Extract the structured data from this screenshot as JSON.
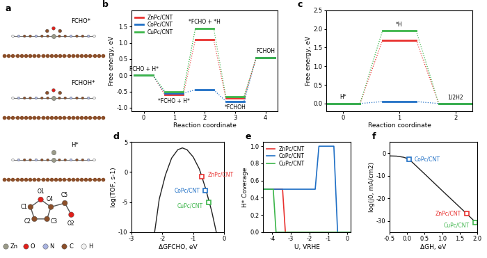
{
  "structure_panel": {
    "title": "a",
    "states": [
      "FCHO*",
      "FCHOH*",
      "H*"
    ],
    "atom_labels": [
      "O1",
      "C1",
      "C2",
      "C3",
      "C4",
      "C5",
      "O2"
    ],
    "legend": [
      {
        "name": "Zn",
        "color": "#9a9a88"
      },
      {
        "name": "O",
        "color": "#e0201b"
      },
      {
        "name": "N",
        "color": "#aab4e0"
      },
      {
        "name": "C",
        "color": "#8b4f2a"
      },
      {
        "name": "H",
        "color": "#f2f2f2"
      }
    ]
  },
  "chart_data": [
    {
      "type": "energy_diagram",
      "title": "b",
      "x_label": "Reaction coordinate",
      "y_label": "Free energy, eV",
      "x": [
        0,
        1,
        2,
        3,
        4
      ],
      "xlim": [
        -0.4,
        4.4
      ],
      "xticks": [
        0,
        1,
        2,
        3,
        4
      ],
      "ylim": [
        -1.1,
        2.0
      ],
      "yticks": [
        {
          "value": -1.0,
          "label": "-1.0"
        },
        {
          "value": -0.5,
          "label": "-0.5"
        },
        {
          "value": 0.0,
          "label": "0.0"
        },
        {
          "value": 0.5,
          "label": "0.5"
        },
        {
          "value": 1.0,
          "label": "1.0"
        },
        {
          "value": 1.5,
          "label": "1.5"
        }
      ],
      "line_style": "dotted",
      "legend": "upper left",
      "series": [
        {
          "name": "ZnPc/CNT",
          "color": "#e8312f",
          "values": [
            0,
            -0.6,
            1.1,
            -0.7,
            0.55
          ]
        },
        {
          "name": "CoPc/CNT",
          "color": "#1f6fc5",
          "values": [
            0,
            -0.55,
            -0.45,
            -0.8,
            0.55
          ]
        },
        {
          "name": "CuPc/CNT",
          "color": "#3cb54a",
          "values": [
            0,
            -0.5,
            1.45,
            -0.65,
            0.55
          ]
        }
      ],
      "annotations": [
        {
          "text": "FCHO + H*",
          "x": 0
        },
        {
          "text": "*FCHO + H*",
          "x": 1
        },
        {
          "text": "*FCHO + *H",
          "x": 2
        },
        {
          "text": "*FCHOH",
          "x": 3
        },
        {
          "text": "FCHOH",
          "x": 4
        }
      ]
    },
    {
      "type": "energy_diagram",
      "title": "c",
      "x_label": "Reaction coordinate",
      "y_label": "Free energy, eV",
      "x": [
        0,
        1,
        2
      ],
      "xlim": [
        -0.3,
        2.3
      ],
      "xticks": [
        0,
        1,
        2
      ],
      "ylim": [
        -0.2,
        2.5
      ],
      "yticks": [
        {
          "value": 0.0,
          "label": "0.0"
        },
        {
          "value": 0.5,
          "label": "0.5"
        },
        {
          "value": 1.0,
          "label": "1.0"
        },
        {
          "value": 1.5,
          "label": "1.5"
        },
        {
          "value": 2.0,
          "label": "2.0"
        },
        {
          "value": 2.5,
          "label": "2.5"
        }
      ],
      "line_style": "dotted",
      "series": [
        {
          "color": "#e8312f",
          "values": [
            0,
            1.7,
            0
          ]
        },
        {
          "color": "#1f6fc5",
          "values": [
            0,
            0.05,
            0
          ]
        },
        {
          "color": "#3cb54a",
          "values": [
            0,
            1.95,
            0
          ]
        }
      ],
      "annotations": [
        {
          "text": "H*",
          "x": 0
        },
        {
          "text": "*H",
          "x": 1
        },
        {
          "text": "1/2H2",
          "x": 2
        }
      ]
    },
    {
      "type": "volcano",
      "title": "d",
      "x_label": "ΔGFCHO, eV",
      "y_label": "log(TOF, s-1)",
      "xlim": [
        -3,
        0
      ],
      "xticks": [
        -3,
        -2,
        -1,
        0
      ],
      "ylim": [
        -10,
        5
      ],
      "yticks": [
        -10,
        -5,
        0,
        5
      ],
      "curve": {
        "color": "#222222",
        "x": [
          -2.25,
          -2.1,
          -1.9,
          -1.7,
          -1.5,
          -1.35,
          -1.2,
          -1.0,
          -0.8,
          -0.6,
          -0.4,
          -0.25
        ],
        "values": [
          -10,
          -4.5,
          -0.5,
          2.3,
          3.7,
          4.0,
          3.7,
          2.5,
          0.5,
          -2.7,
          -6.5,
          -10
        ]
      },
      "series": [
        {
          "name": "ZnPc/CNT",
          "color": "#e8312f",
          "marker": "square",
          "x": [
            -0.72
          ],
          "values": [
            -0.8
          ]
        },
        {
          "name": "CoPc/CNT",
          "color": "#1f6fc5",
          "marker": "square",
          "x": [
            -0.6
          ],
          "values": [
            -3.1
          ]
        },
        {
          "name": "CuPc/CNT",
          "color": "#3cb54a",
          "marker": "square",
          "x": [
            -0.5
          ],
          "values": [
            -5.1
          ]
        }
      ]
    },
    {
      "type": "line",
      "title": "e",
      "x_label": "U, VRHE",
      "y_label": "H* Coverage",
      "xlim": [
        -4.5,
        0.2
      ],
      "xticks": [
        -4,
        -3,
        -2,
        -1,
        0
      ],
      "ylim": [
        0,
        1.05
      ],
      "yticks": [
        {
          "value": 0.0,
          "label": "0.0"
        },
        {
          "value": 0.2,
          "label": "0.2"
        },
        {
          "value": 0.4,
          "label": "0.4"
        },
        {
          "value": 0.6,
          "label": "0.6"
        },
        {
          "value": 0.8,
          "label": "0.8"
        },
        {
          "value": 1.0,
          "label": "1.0"
        }
      ],
      "legend": "upper left",
      "series": [
        {
          "name": "ZnPc/CNT",
          "color": "#e8312f",
          "x": [
            -4.5,
            -3.45,
            -3.3,
            0.2
          ],
          "values": [
            0.5,
            0.5,
            0,
            0
          ]
        },
        {
          "name": "CoPc/CNT",
          "color": "#1f6fc5",
          "x": [
            -4.5,
            -1.7,
            -1.5,
            -0.7,
            -0.5,
            0.2
          ],
          "values": [
            0.5,
            0.5,
            1.0,
            1.0,
            0,
            0
          ]
        },
        {
          "name": "CuPc/CNT",
          "color": "#3cb54a",
          "x": [
            -4.5,
            -3.95,
            -3.8,
            0.2
          ],
          "values": [
            0.5,
            0.5,
            0,
            0
          ]
        }
      ]
    },
    {
      "type": "volcano",
      "title": "f",
      "x_label": "ΔGH, eV",
      "y_label": "log(j0, mA/cm2)",
      "xlim": [
        -0.5,
        2.0
      ],
      "xticks": [
        {
          "value": -0.5,
          "label": "-0.5"
        },
        {
          "value": 0.0,
          "label": "0.0"
        },
        {
          "value": 0.5,
          "label": "0.5"
        },
        {
          "value": 1.0,
          "label": "1.0"
        },
        {
          "value": 1.5,
          "label": "1.5"
        },
        {
          "value": 2.0,
          "label": "2.0"
        }
      ],
      "ylim": [
        -35,
        5
      ],
      "yticks": [
        -30,
        -20,
        -10,
        0
      ],
      "curve": {
        "color": "#222222",
        "x": [
          -0.5,
          -0.3,
          -0.1,
          0.05,
          0.5,
          1.0,
          1.5,
          2.0
        ],
        "values": [
          -1.2,
          -1.3,
          -1.8,
          -2.6,
          -9.2,
          -16.6,
          -23.9,
          -31.3
        ]
      },
      "series": [
        {
          "name": "CoPc/CNT",
          "color": "#1f6fc5",
          "marker": "square",
          "x": [
            0.05
          ],
          "values": [
            -2.6
          ]
        },
        {
          "name": "ZnPc/CNT",
          "color": "#e8312f",
          "marker": "square",
          "x": [
            1.7
          ],
          "values": [
            -26.8
          ]
        },
        {
          "name": "CuPc/CNT",
          "color": "#3cb54a",
          "marker": "square",
          "x": [
            1.95
          ],
          "values": [
            -30.6
          ]
        }
      ]
    }
  ]
}
